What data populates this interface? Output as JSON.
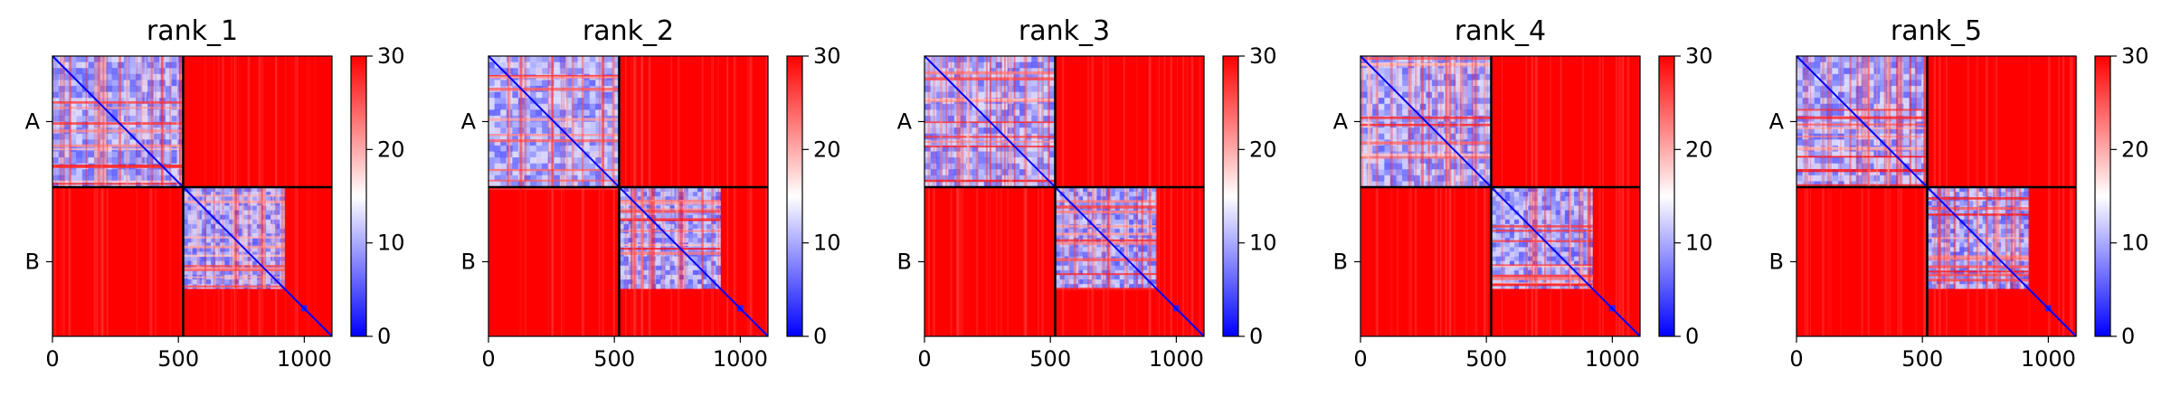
{
  "figure": {
    "panels": [
      {
        "title": "rank_1"
      },
      {
        "title": "rank_2"
      },
      {
        "title": "rank_3"
      },
      {
        "title": "rank_4"
      },
      {
        "title": "rank_5"
      }
    ]
  },
  "colors": {
    "low": "#0000ff",
    "mid": "#ffffff",
    "high": "#ff0000",
    "boundary": "#000000"
  },
  "chart_data": [
    {
      "type": "heatmap",
      "title": "rank_1",
      "x_ticks": [
        0,
        500,
        1000
      ],
      "xlim": [
        0,
        1110
      ],
      "y_tick_labels": [
        "A",
        "B"
      ],
      "chains": [
        {
          "name": "A",
          "start": 0,
          "end": 519
        },
        {
          "name": "B",
          "start": 519,
          "end": 1110
        }
      ],
      "colorbar": {
        "min": 0,
        "max": 30,
        "ticks": [
          0,
          10,
          20,
          30
        ],
        "colormap": "bwr"
      }
    },
    {
      "type": "heatmap",
      "title": "rank_2",
      "x_ticks": [
        0,
        500,
        1000
      ],
      "xlim": [
        0,
        1110
      ],
      "y_tick_labels": [
        "A",
        "B"
      ],
      "chains": [
        {
          "name": "A",
          "start": 0,
          "end": 519
        },
        {
          "name": "B",
          "start": 519,
          "end": 1110
        }
      ],
      "colorbar": {
        "min": 0,
        "max": 30,
        "ticks": [
          0,
          10,
          20,
          30
        ],
        "colormap": "bwr"
      }
    },
    {
      "type": "heatmap",
      "title": "rank_3",
      "x_ticks": [
        0,
        500,
        1000
      ],
      "xlim": [
        0,
        1110
      ],
      "y_tick_labels": [
        "A",
        "B"
      ],
      "chains": [
        {
          "name": "A",
          "start": 0,
          "end": 519
        },
        {
          "name": "B",
          "start": 519,
          "end": 1110
        }
      ],
      "colorbar": {
        "min": 0,
        "max": 30,
        "ticks": [
          0,
          10,
          20,
          30
        ],
        "colormap": "bwr"
      }
    },
    {
      "type": "heatmap",
      "title": "rank_4",
      "x_ticks": [
        0,
        500,
        1000
      ],
      "xlim": [
        0,
        1110
      ],
      "y_tick_labels": [
        "A",
        "B"
      ],
      "chains": [
        {
          "name": "A",
          "start": 0,
          "end": 519
        },
        {
          "name": "B",
          "start": 519,
          "end": 1110
        }
      ],
      "colorbar": {
        "min": 0,
        "max": 30,
        "ticks": [
          0,
          10,
          20,
          30
        ],
        "colormap": "bwr"
      }
    },
    {
      "type": "heatmap",
      "title": "rank_5",
      "x_ticks": [
        0,
        500,
        1000
      ],
      "xlim": [
        0,
        1110
      ],
      "y_tick_labels": [
        "A",
        "B"
      ],
      "chains": [
        {
          "name": "A",
          "start": 0,
          "end": 519
        },
        {
          "name": "B",
          "start": 519,
          "end": 1110
        }
      ],
      "colorbar": {
        "min": 0,
        "max": 30,
        "ticks": [
          0,
          10,
          20,
          30
        ],
        "colormap": "bwr"
      }
    }
  ]
}
